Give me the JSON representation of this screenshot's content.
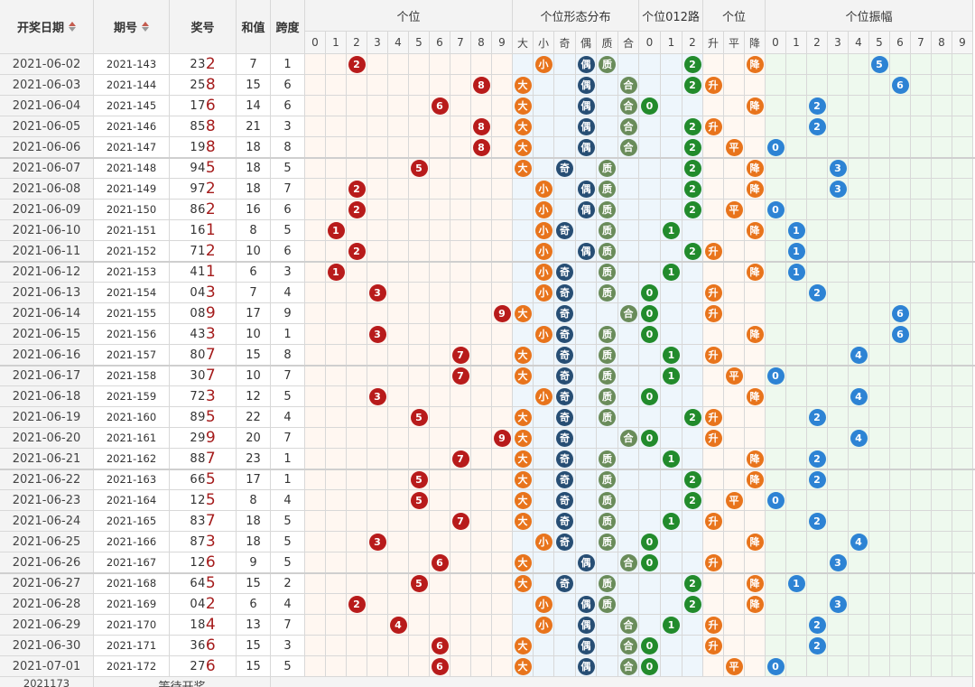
{
  "headers": {
    "date": "开奖日期",
    "issue": "期号",
    "number": "奖号",
    "sum": "和值",
    "span": "跨度",
    "group_digit": "个位",
    "group_form": "个位形态分布",
    "group_road": "个位012路",
    "group_trend": "个位",
    "group_amp": "个位振幅"
  },
  "subheaders": {
    "digit": [
      "0",
      "1",
      "2",
      "3",
      "4",
      "5",
      "6",
      "7",
      "8",
      "9"
    ],
    "form": [
      "大",
      "小",
      "奇",
      "偶",
      "质",
      "合"
    ],
    "road": [
      "0",
      "1",
      "2"
    ],
    "trend": [
      "升",
      "平",
      "降"
    ],
    "amp": [
      "0",
      "1",
      "2",
      "3",
      "4",
      "5",
      "6",
      "7",
      "8",
      "9"
    ]
  },
  "rows": [
    {
      "date": "2021-06-02",
      "issue": "2021-143",
      "num": "232",
      "sum": "7",
      "span": "1",
      "d": 2,
      "f": [
        "小",
        "偶",
        "质"
      ],
      "road": 2,
      "trend": "降",
      "amp": 5
    },
    {
      "date": "2021-06-03",
      "issue": "2021-144",
      "num": "258",
      "sum": "15",
      "span": "6",
      "d": 8,
      "f": [
        "大",
        "偶",
        "合"
      ],
      "road": 2,
      "trend": "升",
      "amp": 6
    },
    {
      "date": "2021-06-04",
      "issue": "2021-145",
      "num": "176",
      "sum": "14",
      "span": "6",
      "d": 6,
      "f": [
        "大",
        "偶",
        "合"
      ],
      "road": 0,
      "trend": "降",
      "amp": 2
    },
    {
      "date": "2021-06-05",
      "issue": "2021-146",
      "num": "858",
      "sum": "21",
      "span": "3",
      "d": 8,
      "f": [
        "大",
        "偶",
        "合"
      ],
      "road": 2,
      "trend": "升",
      "amp": 2
    },
    {
      "date": "2021-06-06",
      "issue": "2021-147",
      "num": "198",
      "sum": "18",
      "span": "8",
      "d": 8,
      "f": [
        "大",
        "偶",
        "合"
      ],
      "road": 2,
      "trend": "平",
      "amp": 0
    },
    {
      "date": "2021-06-07",
      "issue": "2021-148",
      "num": "945",
      "sum": "18",
      "span": "5",
      "d": 5,
      "f": [
        "大",
        "奇",
        "质"
      ],
      "road": 2,
      "trend": "降",
      "amp": 3
    },
    {
      "date": "2021-06-08",
      "issue": "2021-149",
      "num": "972",
      "sum": "18",
      "span": "7",
      "d": 2,
      "f": [
        "小",
        "偶",
        "质"
      ],
      "road": 2,
      "trend": "降",
      "amp": 3
    },
    {
      "date": "2021-06-09",
      "issue": "2021-150",
      "num": "862",
      "sum": "16",
      "span": "6",
      "d": 2,
      "f": [
        "小",
        "偶",
        "质"
      ],
      "road": 2,
      "trend": "平",
      "amp": 0
    },
    {
      "date": "2021-06-10",
      "issue": "2021-151",
      "num": "161",
      "sum": "8",
      "span": "5",
      "d": 1,
      "f": [
        "小",
        "奇",
        "质"
      ],
      "road": 1,
      "trend": "降",
      "amp": 1
    },
    {
      "date": "2021-06-11",
      "issue": "2021-152",
      "num": "712",
      "sum": "10",
      "span": "6",
      "d": 2,
      "f": [
        "小",
        "偶",
        "质"
      ],
      "road": 2,
      "trend": "升",
      "amp": 1
    },
    {
      "date": "2021-06-12",
      "issue": "2021-153",
      "num": "411",
      "sum": "6",
      "span": "3",
      "d": 1,
      "f": [
        "小",
        "奇",
        "质"
      ],
      "road": 1,
      "trend": "降",
      "amp": 1
    },
    {
      "date": "2021-06-13",
      "issue": "2021-154",
      "num": "043",
      "sum": "7",
      "span": "4",
      "d": 3,
      "f": [
        "小",
        "奇",
        "质"
      ],
      "road": 0,
      "trend": "升",
      "amp": 2
    },
    {
      "date": "2021-06-14",
      "issue": "2021-155",
      "num": "089",
      "sum": "17",
      "span": "9",
      "d": 9,
      "f": [
        "大",
        "奇",
        "合"
      ],
      "road": 0,
      "trend": "升",
      "amp": 6
    },
    {
      "date": "2021-06-15",
      "issue": "2021-156",
      "num": "433",
      "sum": "10",
      "span": "1",
      "d": 3,
      "f": [
        "小",
        "奇",
        "质"
      ],
      "road": 0,
      "trend": "降",
      "amp": 6
    },
    {
      "date": "2021-06-16",
      "issue": "2021-157",
      "num": "807",
      "sum": "15",
      "span": "8",
      "d": 7,
      "f": [
        "大",
        "奇",
        "质"
      ],
      "road": 1,
      "trend": "升",
      "amp": 4
    },
    {
      "date": "2021-06-17",
      "issue": "2021-158",
      "num": "307",
      "sum": "10",
      "span": "7",
      "d": 7,
      "f": [
        "大",
        "奇",
        "质"
      ],
      "road": 1,
      "trend": "平",
      "amp": 0
    },
    {
      "date": "2021-06-18",
      "issue": "2021-159",
      "num": "723",
      "sum": "12",
      "span": "5",
      "d": 3,
      "f": [
        "小",
        "奇",
        "质"
      ],
      "road": 0,
      "trend": "降",
      "amp": 4
    },
    {
      "date": "2021-06-19",
      "issue": "2021-160",
      "num": "895",
      "sum": "22",
      "span": "4",
      "d": 5,
      "f": [
        "大",
        "奇",
        "质"
      ],
      "road": 2,
      "trend": "升",
      "amp": 2
    },
    {
      "date": "2021-06-20",
      "issue": "2021-161",
      "num": "299",
      "sum": "20",
      "span": "7",
      "d": 9,
      "f": [
        "大",
        "奇",
        "合"
      ],
      "road": 0,
      "trend": "升",
      "amp": 4
    },
    {
      "date": "2021-06-21",
      "issue": "2021-162",
      "num": "887",
      "sum": "23",
      "span": "1",
      "d": 7,
      "f": [
        "大",
        "奇",
        "质"
      ],
      "road": 1,
      "trend": "降",
      "amp": 2
    },
    {
      "date": "2021-06-22",
      "issue": "2021-163",
      "num": "665",
      "sum": "17",
      "span": "1",
      "d": 5,
      "f": [
        "大",
        "奇",
        "质"
      ],
      "road": 2,
      "trend": "降",
      "amp": 2
    },
    {
      "date": "2021-06-23",
      "issue": "2021-164",
      "num": "125",
      "sum": "8",
      "span": "4",
      "d": 5,
      "f": [
        "大",
        "奇",
        "质"
      ],
      "road": 2,
      "trend": "平",
      "amp": 0
    },
    {
      "date": "2021-06-24",
      "issue": "2021-165",
      "num": "837",
      "sum": "18",
      "span": "5",
      "d": 7,
      "f": [
        "大",
        "奇",
        "质"
      ],
      "road": 1,
      "trend": "升",
      "amp": 2
    },
    {
      "date": "2021-06-25",
      "issue": "2021-166",
      "num": "873",
      "sum": "18",
      "span": "5",
      "d": 3,
      "f": [
        "小",
        "奇",
        "质"
      ],
      "road": 0,
      "trend": "降",
      "amp": 4
    },
    {
      "date": "2021-06-26",
      "issue": "2021-167",
      "num": "126",
      "sum": "9",
      "span": "5",
      "d": 6,
      "f": [
        "大",
        "偶",
        "合"
      ],
      "road": 0,
      "trend": "升",
      "amp": 3
    },
    {
      "date": "2021-06-27",
      "issue": "2021-168",
      "num": "645",
      "sum": "15",
      "span": "2",
      "d": 5,
      "f": [
        "大",
        "奇",
        "质"
      ],
      "road": 2,
      "trend": "降",
      "amp": 1
    },
    {
      "date": "2021-06-28",
      "issue": "2021-169",
      "num": "042",
      "sum": "6",
      "span": "4",
      "d": 2,
      "f": [
        "小",
        "偶",
        "质"
      ],
      "road": 2,
      "trend": "降",
      "amp": 3
    },
    {
      "date": "2021-06-29",
      "issue": "2021-170",
      "num": "184",
      "sum": "13",
      "span": "7",
      "d": 4,
      "f": [
        "小",
        "偶",
        "合"
      ],
      "road": 1,
      "trend": "升",
      "amp": 2
    },
    {
      "date": "2021-06-30",
      "issue": "2021-171",
      "num": "366",
      "sum": "15",
      "span": "3",
      "d": 6,
      "f": [
        "大",
        "偶",
        "合"
      ],
      "road": 0,
      "trend": "升",
      "amp": 2
    },
    {
      "date": "2021-07-01",
      "issue": "2021-172",
      "num": "276",
      "sum": "15",
      "span": "5",
      "d": 6,
      "f": [
        "大",
        "偶",
        "合"
      ],
      "road": 0,
      "trend": "平",
      "amp": 0
    }
  ],
  "footer": {
    "issue": "2021173",
    "status": "等待开奖"
  }
}
